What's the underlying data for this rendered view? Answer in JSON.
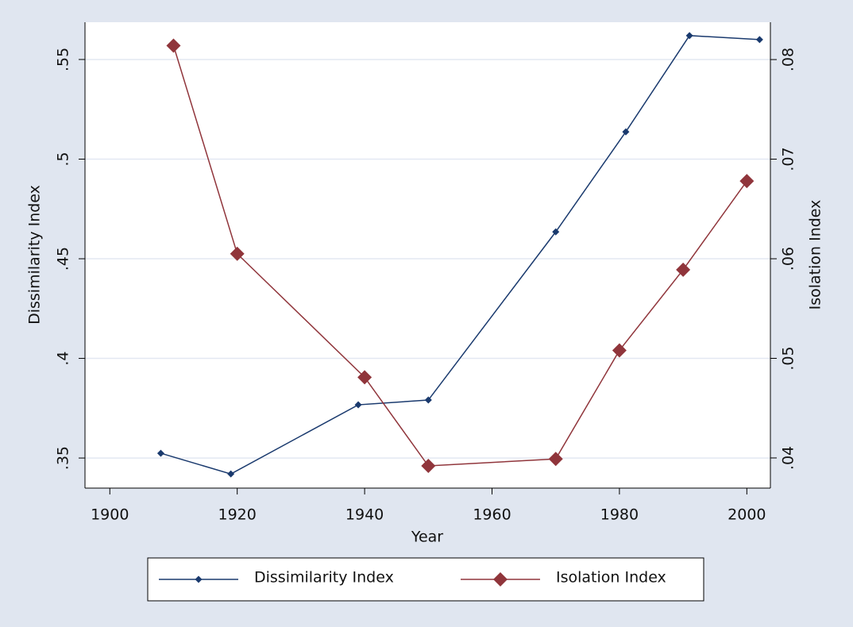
{
  "chart_data": {
    "type": "line",
    "xlabel": "Year",
    "ylabel": "Dissimilarity Index",
    "y2label": "Isolation Index",
    "xlim": [
      1896.1,
      2003.7
    ],
    "xticks": [
      1900,
      1920,
      1940,
      1960,
      1980,
      2000
    ],
    "ylim": [
      0.3349,
      0.5687
    ],
    "yticks": [
      {
        "value": 0.35,
        "label": ".35"
      },
      {
        "value": 0.4,
        "label": ".4"
      },
      {
        "value": 0.45,
        "label": ".45"
      },
      {
        "value": 0.5,
        "label": ".5"
      },
      {
        "value": 0.55,
        "label": ".55"
      }
    ],
    "y2lim": [
      0.03697,
      0.08375
    ],
    "y2ticks": [
      {
        "value": 0.04,
        "label": ".04"
      },
      {
        "value": 0.05,
        "label": ".05"
      },
      {
        "value": 0.06,
        "label": ".06"
      },
      {
        "value": 0.07,
        "label": ".07"
      },
      {
        "value": 0.08,
        "label": ".08"
      }
    ],
    "grid": true,
    "legend": "bottom",
    "series": [
      {
        "name": "Dissimilarity Index",
        "color": "#1a3a6e",
        "marker": "dot",
        "axis": "y",
        "x": [
          1908,
          1919,
          1939,
          1950,
          1970,
          1981,
          1991,
          2002
        ],
        "values": [
          0.3524,
          0.342,
          0.3767,
          0.3791,
          0.4635,
          0.5137,
          0.562,
          0.56
        ]
      },
      {
        "name": "Isolation Index",
        "color": "#90353b",
        "marker": "diamond",
        "axis": "y2",
        "x": [
          1910,
          1920,
          1940,
          1950,
          1970,
          1980,
          1990,
          2000
        ],
        "values": [
          0.0814,
          0.0605,
          0.0481,
          0.0392,
          0.0399,
          0.0508,
          0.0589,
          0.0678
        ]
      }
    ]
  }
}
